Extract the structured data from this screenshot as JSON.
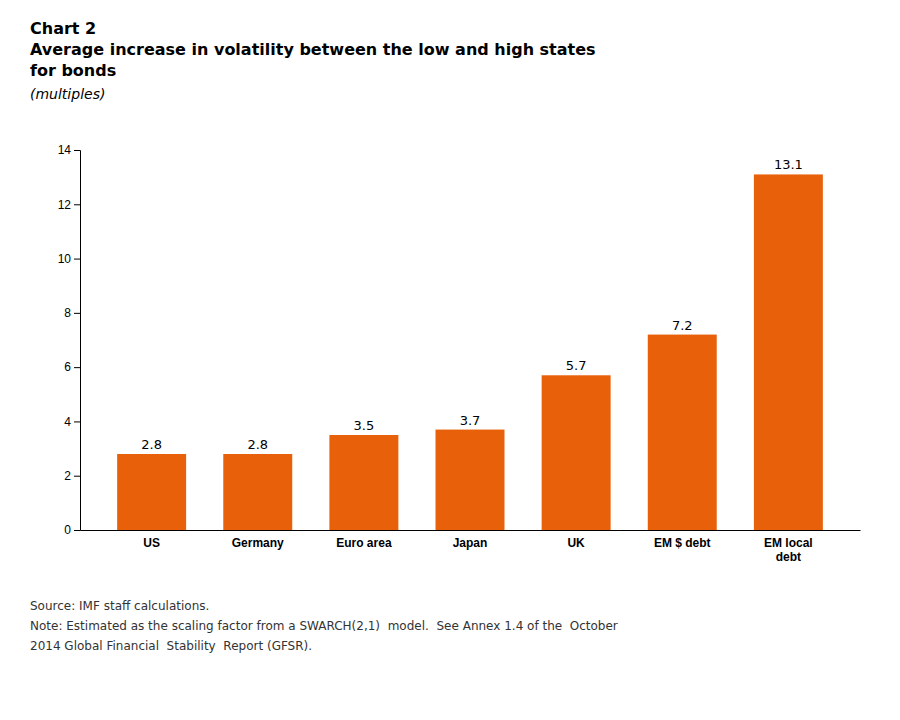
{
  "chart_data": {
    "type": "bar",
    "title": "Chart 2\nAverage increase in volatility between the low and high states\nfor bonds",
    "subtitle": "(multiples)",
    "categories": [
      "US",
      "Germany",
      "Euro area",
      "Japan",
      "UK",
      "EM $ debt",
      "EM local\ndebt"
    ],
    "values": [
      2.8,
      2.8,
      3.5,
      3.7,
      5.7,
      7.2,
      13.1
    ],
    "color": "#E8610A",
    "ylim": [
      0,
      14
    ],
    "yticks": [
      0,
      2,
      4,
      6,
      8,
      10,
      12,
      14
    ],
    "grid": false,
    "data_labels": true,
    "annotations": [
      "Source: IMF staff calculations.",
      "Note: Estimated as the scaling factor from a SWARCH(2,1)  model.  See Annex 1.4 of the  October",
      "2014 Global Financial  Stability  Report (GFSR)."
    ]
  }
}
